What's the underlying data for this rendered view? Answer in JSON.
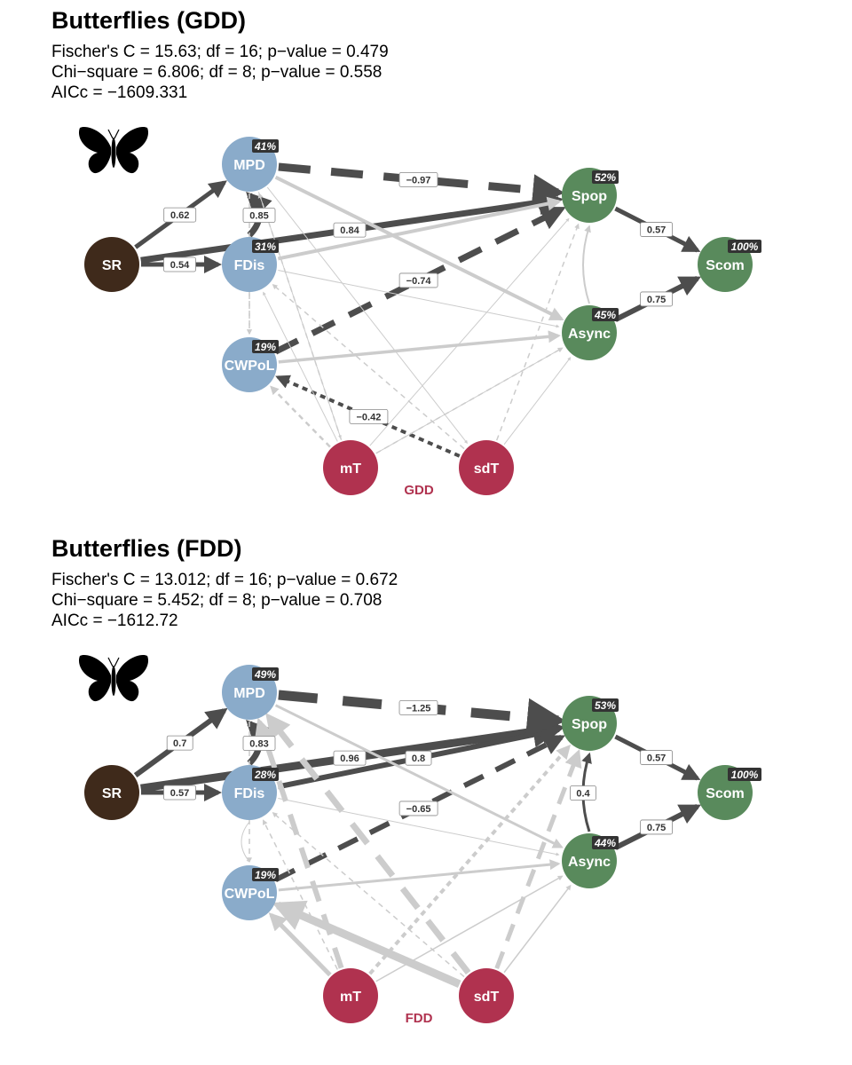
{
  "colors": {
    "sr": "#3f2a1b",
    "diversity": "#8aabca",
    "community": "#598a5c",
    "temperature": "#b0324f",
    "positive": "#4d4d4d",
    "negative": "#4d4d4d",
    "nonsignificant": "#cccccc",
    "badge": "#333333"
  },
  "icon": "butterfly-icon",
  "panels": [
    {
      "title": "Butterflies (GDD)",
      "stats": [
        "Fischer's C = 15.63; df = 16; p−value = 0.479",
        "Chi−square = 6.806; df = 8; p−value = 0.558",
        "AICc = −1609.331"
      ],
      "tag": "GDD",
      "nodes": [
        {
          "id": "SR",
          "label": "SR",
          "group": "sr"
        },
        {
          "id": "MPD",
          "label": "MPD",
          "group": "diversity",
          "r2": "41%"
        },
        {
          "id": "FDis",
          "label": "FDis",
          "group": "diversity",
          "r2": "31%"
        },
        {
          "id": "CWPoL",
          "label": "CWPoL",
          "group": "diversity",
          "r2": "19%"
        },
        {
          "id": "Spop",
          "label": "Spop",
          "group": "community",
          "r2": "52%"
        },
        {
          "id": "Async",
          "label": "Async",
          "group": "community",
          "r2": "45%"
        },
        {
          "id": "Scom",
          "label": "Scom",
          "group": "community",
          "r2": "100%"
        },
        {
          "id": "mT",
          "label": "mT",
          "group": "temperature"
        },
        {
          "id": "sdT",
          "label": "sdT",
          "group": "temperature"
        }
      ],
      "edges": [
        {
          "from": "SR",
          "to": "MPD",
          "coef": "0.62",
          "style": "positive",
          "w": 5
        },
        {
          "from": "SR",
          "to": "FDis",
          "coef": "0.54",
          "style": "positive",
          "w": 5
        },
        {
          "from": "SR",
          "to": "Spop",
          "coef": "0.84",
          "style": "positive",
          "w": 7
        },
        {
          "from": "FDis",
          "to": "MPD",
          "coef": "0.85",
          "style": "positive",
          "w": 7,
          "curve": 22
        },
        {
          "from": "MPD",
          "to": "Spop",
          "coef": "−0.97",
          "style": "negative",
          "w": 9
        },
        {
          "from": "CWPoL",
          "to": "Spop",
          "coef": "−0.74",
          "style": "negative",
          "w": 7
        },
        {
          "from": "sdT",
          "to": "CWPoL",
          "coef": "−0.42",
          "style": "negative",
          "w": 4
        },
        {
          "from": "Spop",
          "to": "Scom",
          "coef": "0.57",
          "style": "positive",
          "w": 5
        },
        {
          "from": "Async",
          "to": "Scom",
          "coef": "0.75",
          "style": "positive",
          "w": 6
        },
        {
          "from": "FDis",
          "to": "Spop",
          "style": "ns",
          "w": 4
        },
        {
          "from": "MPD",
          "to": "Async",
          "style": "ns",
          "w": 4
        },
        {
          "from": "CWPoL",
          "to": "Async",
          "style": "ns",
          "w": 3.5
        },
        {
          "from": "FDis",
          "to": "Async",
          "style": "ns",
          "w": 1
        },
        {
          "from": "Async",
          "to": "Spop",
          "style": "ns",
          "w": 2,
          "curve": -14
        },
        {
          "from": "MPD",
          "to": "mT",
          "style": "ns",
          "w": 1
        },
        {
          "from": "MPD",
          "to": "sdT",
          "style": "ns",
          "w": 1
        },
        {
          "from": "mT",
          "to": "FDis",
          "style": "ns",
          "w": 1
        },
        {
          "from": "mT",
          "to": "Spop",
          "style": "ns",
          "w": 1
        },
        {
          "from": "sdT",
          "to": "Async",
          "style": "ns",
          "w": 1
        },
        {
          "from": "mT",
          "to": "Async",
          "style": "ns",
          "w": 1
        },
        {
          "from": "MPD",
          "to": "CWPoL",
          "style": "ns-dash",
          "w": 1.5
        },
        {
          "from": "FDis",
          "to": "CWPoL",
          "style": "ns-dash",
          "w": 1.5
        },
        {
          "from": "mT",
          "to": "CWPoL",
          "style": "ns-dash",
          "w": 2.5
        },
        {
          "from": "mT",
          "to": "MPD",
          "style": "ns-dash",
          "w": 1.5
        },
        {
          "from": "sdT",
          "to": "FDis",
          "style": "ns-dash",
          "w": 1.5
        },
        {
          "from": "sdT",
          "to": "Spop",
          "style": "ns-dash",
          "w": 1.5
        },
        {
          "from": "mT",
          "to": "Async",
          "style": "ns-dash",
          "w": 1.5
        }
      ]
    },
    {
      "title": "Butterflies (FDD)",
      "stats": [
        "Fischer's C = 13.012; df = 16; p−value = 0.672",
        "Chi−square = 5.452; df = 8; p−value = 0.708",
        "AICc = −1612.72"
      ],
      "tag": "FDD",
      "nodes": [
        {
          "id": "SR",
          "label": "SR",
          "group": "sr"
        },
        {
          "id": "MPD",
          "label": "MPD",
          "group": "diversity",
          "r2": "49%"
        },
        {
          "id": "FDis",
          "label": "FDis",
          "group": "diversity",
          "r2": "28%"
        },
        {
          "id": "CWPoL",
          "label": "CWPoL",
          "group": "diversity",
          "r2": "19%"
        },
        {
          "id": "Spop",
          "label": "Spop",
          "group": "community",
          "r2": "53%"
        },
        {
          "id": "Async",
          "label": "Async",
          "group": "community",
          "r2": "44%"
        },
        {
          "id": "Scom",
          "label": "Scom",
          "group": "community",
          "r2": "100%"
        },
        {
          "id": "mT",
          "label": "mT",
          "group": "temperature"
        },
        {
          "id": "sdT",
          "label": "sdT",
          "group": "temperature"
        }
      ],
      "edges": [
        {
          "from": "SR",
          "to": "MPD",
          "coef": "0.7",
          "style": "positive",
          "w": 6
        },
        {
          "from": "SR",
          "to": "FDis",
          "coef": "0.57",
          "style": "positive",
          "w": 5
        },
        {
          "from": "SR",
          "to": "Spop",
          "coef": "0.96",
          "style": "positive",
          "w": 9
        },
        {
          "from": "FDis",
          "to": "Spop",
          "coef": "0.8",
          "style": "positive",
          "w": 6
        },
        {
          "from": "FDis",
          "to": "MPD",
          "coef": "0.83",
          "style": "positive",
          "w": 7,
          "curve": 22
        },
        {
          "from": "MPD",
          "to": "Spop",
          "coef": "−1.25",
          "style": "negative",
          "w": 11
        },
        {
          "from": "CWPoL",
          "to": "Spop",
          "coef": "−0.65",
          "style": "negative",
          "w": 6
        },
        {
          "from": "Async",
          "to": "Spop",
          "coef": "0.4",
          "style": "positive",
          "w": 3,
          "curve": -14
        },
        {
          "from": "Spop",
          "to": "Scom",
          "coef": "0.57",
          "style": "positive",
          "w": 5
        },
        {
          "from": "Async",
          "to": "Scom",
          "coef": "0.75",
          "style": "positive",
          "w": 6
        },
        {
          "from": "MPD",
          "to": "Async",
          "style": "ns",
          "w": 3
        },
        {
          "from": "CWPoL",
          "to": "Async",
          "style": "ns",
          "w": 3
        },
        {
          "from": "FDis",
          "to": "Async",
          "style": "ns",
          "w": 1
        },
        {
          "from": "sdT",
          "to": "CWPoL",
          "style": "ns",
          "w": 9
        },
        {
          "from": "mT",
          "to": "CWPoL",
          "style": "ns",
          "w": 5
        },
        {
          "from": "mT",
          "to": "Async",
          "style": "ns",
          "w": 1.5
        },
        {
          "from": "sdT",
          "to": "Async",
          "style": "ns",
          "w": 1.5
        },
        {
          "from": "FDis",
          "to": "CWPoL",
          "style": "ns",
          "w": 1,
          "curve": 18
        },
        {
          "from": "mT",
          "to": "MPD",
          "style": "ns-dash",
          "w": 6
        },
        {
          "from": "sdT",
          "to": "MPD",
          "style": "ns-dash",
          "w": 7
        },
        {
          "from": "sdT",
          "to": "Spop",
          "style": "ns-dash",
          "w": 5
        },
        {
          "from": "mT",
          "to": "Spop",
          "style": "ns-dash",
          "w": 4
        },
        {
          "from": "MPD",
          "to": "CWPoL",
          "style": "ns-dash",
          "w": 1.5
        },
        {
          "from": "sdT",
          "to": "FDis",
          "style": "ns-dash",
          "w": 1.5
        },
        {
          "from": "mT",
          "to": "FDis",
          "style": "ns-dash",
          "w": 1.5
        }
      ]
    }
  ]
}
